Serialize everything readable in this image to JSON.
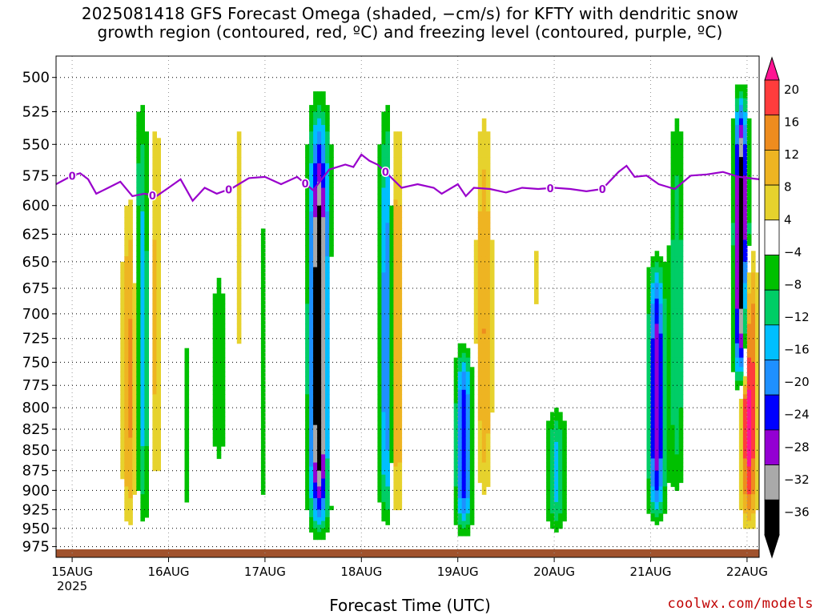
{
  "title_line1": "2025081418 GFS Forecast Omega (shaded, −cm/s) for KFTY with dendritic snow",
  "title_line2": "growth region (contoured, red, ºC) and freezing level (contoured, purple, ºC)",
  "credit": "coolwx.com/models",
  "colors": {
    "freezing_line": "#9900cc",
    "ground": "#a0522d",
    "palette": [
      "#000000",
      "#a9a9a9",
      "#9400d3",
      "#0000ff",
      "#1e90ff",
      "#00bfff",
      "#00cd66",
      "#00c000",
      "#ffffff",
      "#e6d22d",
      "#eeb422",
      "#ee8c1e",
      "#ff3c3c",
      "#ff1493"
    ]
  },
  "chart_data": {
    "type": "heatmap",
    "xlabel": "Forecast Time (UTC)",
    "ylabel": "",
    "x_ticks": [
      "15AUG",
      "16AUG",
      "17AUG",
      "18AUG",
      "19AUG",
      "20AUG",
      "21AUG",
      "22AUG"
    ],
    "x_tick_sub": "2025",
    "y_ticks": [
      500,
      525,
      550,
      575,
      600,
      625,
      650,
      675,
      700,
      725,
      750,
      775,
      800,
      825,
      850,
      875,
      900,
      925,
      950,
      975
    ],
    "y_range": [
      485,
      990
    ],
    "y_scale": "log-pressure",
    "x_range_hours": [
      -4,
      171
    ],
    "grid": true,
    "colorbar": {
      "labels": [
        "20",
        "16",
        "12",
        "8",
        "4",
        "−4",
        "−8",
        "−12",
        "−16",
        "−20",
        "−24",
        "−28",
        "−32",
        "−36"
      ],
      "bins": [
        {
          "min": 20,
          "max": 99,
          "color": "#ff1493"
        },
        {
          "min": 16,
          "max": 20,
          "color": "#ff3c3c"
        },
        {
          "min": 12,
          "max": 16,
          "color": "#ee8c1e"
        },
        {
          "min": 8,
          "max": 12,
          "color": "#eeb422"
        },
        {
          "min": 4,
          "max": 8,
          "color": "#e6d22d"
        },
        {
          "min": -4,
          "max": 4,
          "color": "#ffffff"
        },
        {
          "min": -8,
          "max": -4,
          "color": "#00c000"
        },
        {
          "min": -12,
          "max": -8,
          "color": "#00cd66"
        },
        {
          "min": -16,
          "max": -12,
          "color": "#00bfff"
        },
        {
          "min": -20,
          "max": -16,
          "color": "#1e90ff"
        },
        {
          "min": -24,
          "max": -20,
          "color": "#0000ff"
        },
        {
          "min": -28,
          "max": -24,
          "color": "#9400d3"
        },
        {
          "min": -32,
          "max": -28,
          "color": "#a9a9a9"
        },
        {
          "min": -99,
          "max": -36,
          "color": "#000000"
        }
      ]
    },
    "freezing_level_label": "0",
    "freezing_level": [
      {
        "hour": -4,
        "p": 582
      },
      {
        "hour": 0,
        "p": 575
      },
      {
        "hour": 2,
        "p": 573
      },
      {
        "hour": 4,
        "p": 578
      },
      {
        "hour": 6,
        "p": 590
      },
      {
        "hour": 9,
        "p": 585
      },
      {
        "hour": 12,
        "p": 580
      },
      {
        "hour": 15,
        "p": 592
      },
      {
        "hour": 18,
        "p": 590
      },
      {
        "hour": 21,
        "p": 592
      },
      {
        "hour": 24,
        "p": 585
      },
      {
        "hour": 27,
        "p": 578
      },
      {
        "hour": 30,
        "p": 596
      },
      {
        "hour": 33,
        "p": 585
      },
      {
        "hour": 36,
        "p": 590
      },
      {
        "hour": 40,
        "p": 585
      },
      {
        "hour": 44,
        "p": 577
      },
      {
        "hour": 48,
        "p": 576
      },
      {
        "hour": 52,
        "p": 582
      },
      {
        "hour": 56,
        "p": 576
      },
      {
        "hour": 60,
        "p": 587
      },
      {
        "hour": 64,
        "p": 570
      },
      {
        "hour": 68,
        "p": 566
      },
      {
        "hour": 70,
        "p": 568
      },
      {
        "hour": 72,
        "p": 558
      },
      {
        "hour": 74,
        "p": 563
      },
      {
        "hour": 76,
        "p": 566
      },
      {
        "hour": 78,
        "p": 572
      },
      {
        "hour": 82,
        "p": 585
      },
      {
        "hour": 86,
        "p": 582
      },
      {
        "hour": 90,
        "p": 585
      },
      {
        "hour": 92,
        "p": 590
      },
      {
        "hour": 96,
        "p": 582
      },
      {
        "hour": 98,
        "p": 592
      },
      {
        "hour": 100,
        "p": 585
      },
      {
        "hour": 104,
        "p": 586
      },
      {
        "hour": 108,
        "p": 589
      },
      {
        "hour": 112,
        "p": 585
      },
      {
        "hour": 116,
        "p": 586
      },
      {
        "hour": 120,
        "p": 585
      },
      {
        "hour": 124,
        "p": 586
      },
      {
        "hour": 128,
        "p": 588
      },
      {
        "hour": 132,
        "p": 586
      },
      {
        "hour": 136,
        "p": 572
      },
      {
        "hour": 138,
        "p": 567
      },
      {
        "hour": 140,
        "p": 576
      },
      {
        "hour": 143,
        "p": 575
      },
      {
        "hour": 146,
        "p": 582
      },
      {
        "hour": 150,
        "p": 586
      },
      {
        "hour": 154,
        "p": 575
      },
      {
        "hour": 158,
        "p": 574
      },
      {
        "hour": 162,
        "p": 572
      },
      {
        "hour": 166,
        "p": 576
      },
      {
        "hour": 171,
        "p": 578
      }
    ],
    "freezing_level_label_hours": [
      0,
      20,
      39,
      58,
      78,
      119,
      132
    ],
    "omega_features": [
      {
        "hour": 41,
        "p_top": 495,
        "p_bottom": 770,
        "width_h": 3,
        "peak": 6
      },
      {
        "hour": 14,
        "p_top": 565,
        "p_bottom": 965,
        "width_h": 5,
        "peak": 14
      },
      {
        "hour": 17,
        "p_top": 495,
        "p_bottom": 960,
        "width_h": 5,
        "peak": -16
      },
      {
        "hour": 20,
        "p_top": 495,
        "p_bottom": 920,
        "width_h": 5,
        "peak": 10
      },
      {
        "hour": 28,
        "p_top": 695,
        "p_bottom": 950,
        "width_h": 3,
        "peak": -6
      },
      {
        "hour": 36,
        "p_top": 630,
        "p_bottom": 890,
        "width_h": 5,
        "peak": -7
      },
      {
        "hour": 47,
        "p_top": 570,
        "p_bottom": 950,
        "width_h": 3,
        "peak": -7
      },
      {
        "hour": 61,
        "p_top": 500,
        "p_bottom": 970,
        "width_h": 6,
        "peak": -40
      },
      {
        "hour": 64,
        "p_top": 620,
        "p_bottom": 920,
        "width_h": 4,
        "peak": 9
      },
      {
        "hour": 78,
        "p_top": 500,
        "p_bottom": 960,
        "width_h": 5,
        "peak": -22
      },
      {
        "hour": 80,
        "p_top": 500,
        "p_bottom": 960,
        "width_h": 4,
        "peak": 18
      },
      {
        "hour": 97,
        "p_top": 720,
        "p_bottom": 965,
        "width_h": 5,
        "peak": -24
      },
      {
        "hour": 102,
        "p_top": 500,
        "p_bottom": 930,
        "width_h": 5,
        "peak": 12
      },
      {
        "hour": 120,
        "p_top": 790,
        "p_bottom": 960,
        "width_h": 6,
        "peak": -13
      },
      {
        "hour": 115,
        "p_top": 625,
        "p_bottom": 700,
        "width_h": 3,
        "peak": 6
      },
      {
        "hour": 145,
        "p_top": 630,
        "p_bottom": 950,
        "width_h": 5,
        "peak": -28
      },
      {
        "hour": 150,
        "p_top": 495,
        "p_bottom": 930,
        "width_h": 5,
        "peak": -11
      },
      {
        "hour": 166,
        "p_top": 495,
        "p_bottom": 790,
        "width_h": 4,
        "peak": -40
      },
      {
        "hour": 168,
        "p_top": 620,
        "p_bottom": 960,
        "width_h": 5,
        "peak": 22
      }
    ]
  }
}
